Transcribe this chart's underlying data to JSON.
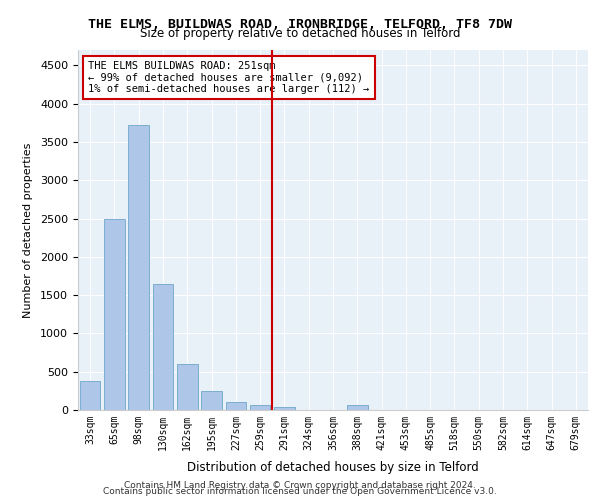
{
  "title_line1": "THE ELMS, BUILDWAS ROAD, IRONBRIDGE, TELFORD, TF8 7DW",
  "title_line2": "Size of property relative to detached houses in Telford",
  "xlabel": "Distribution of detached houses by size in Telford",
  "ylabel": "Number of detached properties",
  "categories": [
    "33sqm",
    "65sqm",
    "98sqm",
    "130sqm",
    "162sqm",
    "195sqm",
    "227sqm",
    "259sqm",
    "291sqm",
    "324sqm",
    "356sqm",
    "388sqm",
    "421sqm",
    "453sqm",
    "485sqm",
    "518sqm",
    "550sqm",
    "582sqm",
    "614sqm",
    "647sqm",
    "679sqm"
  ],
  "bar_values": [
    380,
    2500,
    3720,
    1640,
    600,
    245,
    100,
    60,
    40,
    0,
    0,
    70,
    0,
    0,
    0,
    0,
    0,
    0,
    0,
    0,
    0
  ],
  "bar_color": "#aec6e8",
  "bar_edge_color": "#7aaed0",
  "property_line_x": 7.7,
  "property_line_label": "THE ELMS BUILDWAS ROAD: 251sqm",
  "annotation_line1": "← 99% of detached houses are smaller (9,092)",
  "annotation_line2": "1% of semi-detached houses are larger (112) →",
  "annotation_box_color": "#ffffff",
  "annotation_box_edge": "#cc0000",
  "vline_color": "#cc0000",
  "ylim": [
    0,
    4700
  ],
  "footer_line1": "Contains HM Land Registry data © Crown copyright and database right 2024.",
  "footer_line2": "Contains public sector information licensed under the Open Government Licence v3.0.",
  "bg_color": "#e8f0f8",
  "plot_bg_color": "#e8f0f8"
}
